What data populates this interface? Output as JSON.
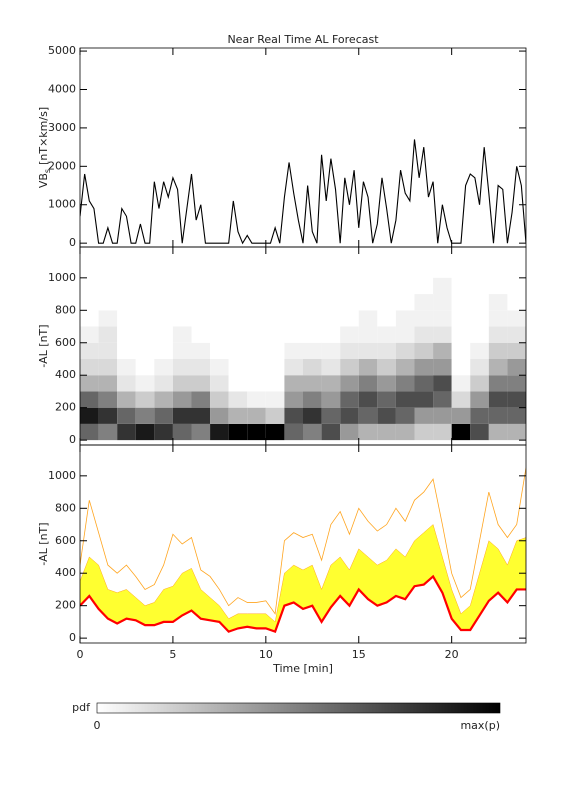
{
  "chart_data": [
    {
      "type": "line",
      "title": "Near Real Time AL Forecast",
      "ylabel": {
        "main": "VB",
        "sub": "s",
        "unit": "[nT×km/s]"
      },
      "xlim": [
        0,
        24
      ],
      "xticks": [
        0,
        5,
        10,
        15,
        20
      ],
      "show_xtick_labels": false,
      "ylim": [
        -100,
        5080
      ],
      "yticks": [
        0,
        1000,
        2000,
        3000,
        4000,
        5000
      ],
      "x": [
        0,
        0.25,
        0.5,
        0.75,
        1,
        1.25,
        1.5,
        1.75,
        2,
        2.25,
        2.5,
        2.75,
        3,
        3.25,
        3.5,
        3.75,
        4,
        4.25,
        4.5,
        4.75,
        5,
        5.25,
        5.5,
        5.75,
        6,
        6.25,
        6.5,
        6.75,
        7,
        7.25,
        7.5,
        7.75,
        8,
        8.25,
        8.5,
        8.75,
        9,
        9.25,
        9.5,
        9.75,
        10,
        10.25,
        10.5,
        10.75,
        11,
        11.25,
        11.5,
        11.75,
        12,
        12.25,
        12.5,
        12.75,
        13,
        13.25,
        13.5,
        13.75,
        14,
        14.25,
        14.5,
        14.75,
        15,
        15.25,
        15.5,
        15.75,
        16,
        16.25,
        16.5,
        16.75,
        17,
        17.25,
        17.5,
        17.75,
        18,
        18.25,
        18.5,
        18.75,
        19,
        19.25,
        19.5,
        19.75,
        20,
        20.25,
        20.5,
        20.75,
        21,
        21.25,
        21.5,
        21.75,
        22,
        22.25,
        22.5,
        22.75,
        23,
        23.25,
        23.5,
        23.75,
        24
      ],
      "series": [
        {
          "color": "#000000",
          "values": [
            700,
            1800,
            1100,
            900,
            0,
            0,
            400,
            0,
            0,
            900,
            700,
            0,
            0,
            500,
            0,
            0,
            1600,
            900,
            1600,
            1200,
            1700,
            1400,
            0,
            900,
            1800,
            600,
            1000,
            0,
            0,
            0,
            0,
            0,
            0,
            1100,
            300,
            0,
            200,
            0,
            0,
            0,
            0,
            0,
            400,
            0,
            1200,
            2100,
            1300,
            600,
            0,
            1500,
            300,
            0,
            2300,
            1100,
            2200,
            1400,
            0,
            1700,
            1000,
            1900,
            400,
            1600,
            1200,
            0,
            500,
            1700,
            900,
            0,
            600,
            1900,
            1300,
            1100,
            2700,
            1700,
            2500,
            1200,
            1600,
            0,
            1000,
            400,
            0,
            0,
            0,
            1500,
            1800,
            1700,
            1000,
            2500,
            1300,
            0,
            1500,
            1400,
            0,
            800,
            2000,
            1500,
            0
          ]
        }
      ]
    },
    {
      "type": "heatmap",
      "ylabel": "-AL [nT]",
      "xlim": [
        0,
        24
      ],
      "xticks": [
        0,
        5,
        10,
        15,
        20
      ],
      "show_xtick_labels": false,
      "ylim": [
        -30,
        1190
      ],
      "yticks": [
        0,
        200,
        400,
        600,
        800,
        1000
      ],
      "xbins": [
        0,
        1,
        2,
        3,
        4,
        5,
        6,
        7,
        8,
        9,
        10,
        11,
        12,
        13,
        14,
        15,
        16,
        17,
        18,
        19,
        20,
        21,
        22,
        23,
        24
      ],
      "ybins": [
        0,
        100,
        200,
        300,
        400,
        500,
        600,
        700,
        800,
        900,
        1000
      ],
      "z": [
        [
          0.6,
          0.9,
          0.6,
          0.3,
          0.15,
          0.1,
          0.05,
          0,
          0,
          0
        ],
        [
          0.5,
          0.8,
          0.5,
          0.3,
          0.15,
          0.1,
          0.1,
          0.05,
          0,
          0
        ],
        [
          0.8,
          0.6,
          0.3,
          0.1,
          0.05,
          0,
          0,
          0,
          0,
          0
        ],
        [
          0.9,
          0.5,
          0.2,
          0.05,
          0,
          0,
          0,
          0,
          0,
          0
        ],
        [
          0.8,
          0.6,
          0.3,
          0.1,
          0.05,
          0,
          0,
          0,
          0,
          0
        ],
        [
          0.6,
          0.8,
          0.4,
          0.2,
          0.1,
          0.05,
          0.05,
          0,
          0,
          0
        ],
        [
          0.5,
          0.8,
          0.5,
          0.2,
          0.1,
          0.05,
          0,
          0,
          0,
          0
        ],
        [
          0.9,
          0.4,
          0.2,
          0.1,
          0.05,
          0,
          0,
          0,
          0,
          0
        ],
        [
          1,
          0.3,
          0.1,
          0,
          0,
          0,
          0,
          0,
          0,
          0
        ],
        [
          1,
          0.3,
          0.05,
          0,
          0,
          0,
          0,
          0,
          0,
          0
        ],
        [
          1,
          0.2,
          0.05,
          0,
          0,
          0,
          0,
          0,
          0,
          0
        ],
        [
          0.6,
          0.7,
          0.4,
          0.3,
          0.1,
          0.05,
          0,
          0,
          0,
          0
        ],
        [
          0.5,
          0.8,
          0.5,
          0.3,
          0.15,
          0.05,
          0,
          0,
          0,
          0
        ],
        [
          0.7,
          0.6,
          0.4,
          0.3,
          0.1,
          0.05,
          0,
          0,
          0,
          0
        ],
        [
          0.4,
          0.7,
          0.6,
          0.4,
          0.2,
          0.1,
          0.05,
          0,
          0,
          0
        ],
        [
          0.3,
          0.6,
          0.7,
          0.5,
          0.3,
          0.1,
          0.05,
          0.05,
          0,
          0
        ],
        [
          0.3,
          0.7,
          0.6,
          0.4,
          0.2,
          0.1,
          0.05,
          0,
          0,
          0
        ],
        [
          0.3,
          0.6,
          0.7,
          0.5,
          0.3,
          0.15,
          0.05,
          0.05,
          0,
          0
        ],
        [
          0.2,
          0.4,
          0.7,
          0.6,
          0.4,
          0.2,
          0.1,
          0.05,
          0.05,
          0
        ],
        [
          0.2,
          0.4,
          0.6,
          0.7,
          0.4,
          0.3,
          0.1,
          0.05,
          0.05,
          0.05
        ],
        [
          1,
          0.4,
          0.15,
          0.05,
          0,
          0,
          0,
          0,
          0,
          0
        ],
        [
          0.7,
          0.6,
          0.4,
          0.2,
          0.1,
          0.05,
          0,
          0,
          0,
          0
        ],
        [
          0.3,
          0.6,
          0.7,
          0.5,
          0.3,
          0.2,
          0.1,
          0.05,
          0.05,
          0
        ],
        [
          0.3,
          0.6,
          0.7,
          0.5,
          0.4,
          0.2,
          0.1,
          0.05,
          0,
          0
        ]
      ],
      "colorbar": {
        "label": "pdf",
        "min_label": "0",
        "max_label": "max(p)"
      }
    },
    {
      "type": "band",
      "ylabel": "-AL [nT]",
      "xlabel": "Time [min]",
      "xlim": [
        0,
        24
      ],
      "xticks": [
        0,
        5,
        10,
        15,
        20
      ],
      "show_xtick_labels": true,
      "ylim": [
        -30,
        1190
      ],
      "yticks": [
        0,
        200,
        400,
        600,
        800,
        1000
      ],
      "x": [
        0,
        0.5,
        1,
        1.5,
        2,
        2.5,
        3,
        3.5,
        4,
        4.5,
        5,
        5.5,
        6,
        6.5,
        7,
        7.5,
        8,
        8.5,
        9,
        9.5,
        10,
        10.5,
        11,
        11.5,
        12,
        12.5,
        13,
        13.5,
        14,
        14.5,
        15,
        15.5,
        16,
        16.5,
        17,
        17.5,
        18,
        18.5,
        19,
        19.5,
        20,
        20.5,
        21,
        21.5,
        22,
        22.5,
        23,
        23.5,
        24
      ],
      "band": {
        "color": "#ffff30",
        "values": [
          350,
          500,
          450,
          300,
          280,
          300,
          250,
          200,
          220,
          300,
          320,
          400,
          430,
          300,
          250,
          200,
          120,
          150,
          150,
          150,
          150,
          100,
          400,
          450,
          420,
          450,
          300,
          450,
          500,
          420,
          550,
          500,
          450,
          480,
          550,
          500,
          600,
          650,
          700,
          500,
          300,
          150,
          200,
          400,
          600,
          550,
          450,
          600,
          620
        ]
      },
      "series": [
        {
          "color": "#ffa520",
          "values": [
            450,
            850,
            650,
            450,
            400,
            450,
            380,
            300,
            330,
            450,
            640,
            580,
            620,
            420,
            380,
            300,
            200,
            250,
            220,
            220,
            230,
            150,
            600,
            650,
            620,
            640,
            480,
            700,
            780,
            640,
            800,
            720,
            660,
            700,
            800,
            720,
            850,
            900,
            980,
            700,
            400,
            250,
            300,
            600,
            900,
            700,
            620,
            700,
            1050
          ]
        },
        {
          "color": "#ff0000",
          "values": [
            200,
            260,
            180,
            120,
            90,
            120,
            110,
            80,
            80,
            100,
            100,
            140,
            170,
            120,
            110,
            100,
            40,
            60,
            70,
            60,
            60,
            40,
            200,
            220,
            180,
            200,
            100,
            190,
            260,
            200,
            300,
            240,
            200,
            220,
            260,
            240,
            320,
            330,
            380,
            280,
            120,
            50,
            50,
            140,
            230,
            280,
            220,
            300,
            300
          ]
        }
      ]
    }
  ]
}
